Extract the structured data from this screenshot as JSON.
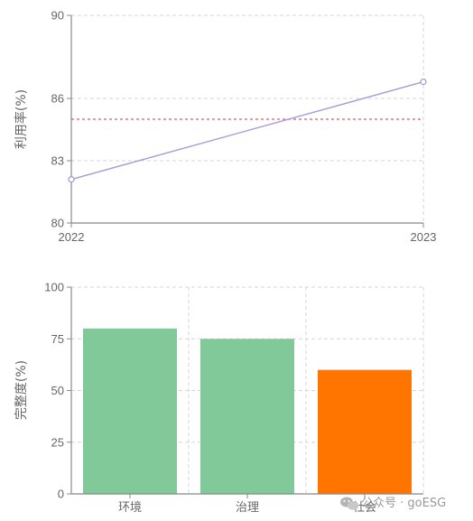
{
  "chart_data": [
    {
      "type": "line",
      "ylabel": "利用率(%)",
      "x": [
        "2022",
        "2023"
      ],
      "series": [
        {
          "values": [
            82.1,
            86.8
          ],
          "color": "#a89ad8"
        }
      ],
      "reference_line": {
        "value": 85,
        "color": "#f0555a",
        "style": "dashed"
      },
      "ylim": [
        80,
        90
      ],
      "yticks": [
        "80",
        "83",
        "86",
        "90"
      ],
      "grid": true
    },
    {
      "type": "bar",
      "ylabel": "完整度(%)",
      "categories": [
        "环境",
        "治理",
        "社会"
      ],
      "values": [
        80,
        75,
        60
      ],
      "colors": [
        "#82c99a",
        "#82c99a",
        "#ff7500"
      ],
      "ylim": [
        0,
        100
      ],
      "yticks": [
        "0",
        "25",
        "50",
        "75",
        "100"
      ],
      "grid": true
    }
  ],
  "watermark": {
    "text": "公众号 · goESG",
    "icon": "wechat-icon"
  }
}
